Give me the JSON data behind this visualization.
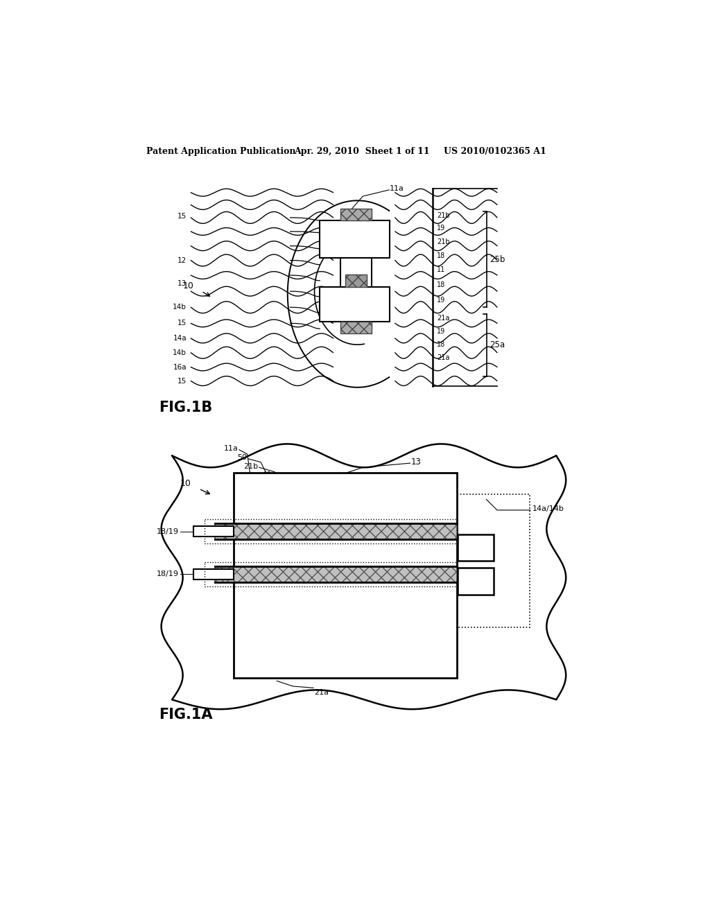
{
  "bg_color": "#ffffff",
  "header_text": "Patent Application Publication",
  "header_date": "Apr. 29, 2010  Sheet 1 of 11",
  "header_patent": "US 2010/0102365 A1",
  "text_color": "#000000"
}
